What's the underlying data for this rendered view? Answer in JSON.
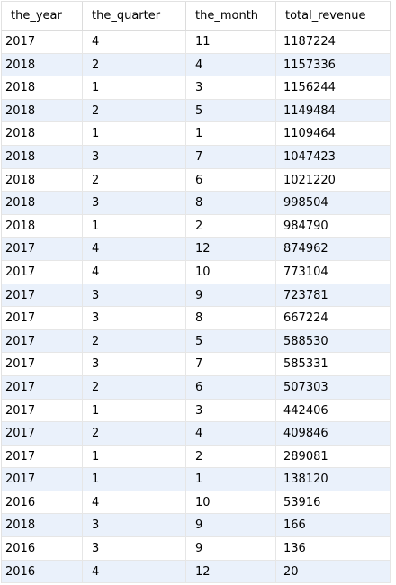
{
  "result_grid": {
    "columns": [
      "the_year",
      "the_quarter",
      "the_month",
      "total_revenue"
    ],
    "rows": [
      [
        "2017",
        "4",
        "11",
        "1187224"
      ],
      [
        "2018",
        "2",
        "4",
        "1157336"
      ],
      [
        "2018",
        "1",
        "3",
        "1156244"
      ],
      [
        "2018",
        "2",
        "5",
        "1149484"
      ],
      [
        "2018",
        "1",
        "1",
        "1109464"
      ],
      [
        "2018",
        "3",
        "7",
        "1047423"
      ],
      [
        "2018",
        "2",
        "6",
        "1021220"
      ],
      [
        "2018",
        "3",
        "8",
        "998504"
      ],
      [
        "2018",
        "1",
        "2",
        "984790"
      ],
      [
        "2017",
        "4",
        "12",
        "874962"
      ],
      [
        "2017",
        "4",
        "10",
        "773104"
      ],
      [
        "2017",
        "3",
        "9",
        "723781"
      ],
      [
        "2017",
        "3",
        "8",
        "667224"
      ],
      [
        "2017",
        "2",
        "5",
        "588530"
      ],
      [
        "2017",
        "3",
        "7",
        "585331"
      ],
      [
        "2017",
        "2",
        "6",
        "507303"
      ],
      [
        "2017",
        "1",
        "3",
        "442406"
      ],
      [
        "2017",
        "2",
        "4",
        "409846"
      ],
      [
        "2017",
        "1",
        "2",
        "289081"
      ],
      [
        "2017",
        "1",
        "1",
        "138120"
      ],
      [
        "2016",
        "4",
        "10",
        "53916"
      ],
      [
        "2018",
        "3",
        "9",
        "166"
      ],
      [
        "2016",
        "3",
        "9",
        "136"
      ],
      [
        "2016",
        "4",
        "12",
        "20"
      ]
    ],
    "colors": {
      "row_alt": "#eaf1fb",
      "grid_line": "#e6e6e6"
    }
  }
}
